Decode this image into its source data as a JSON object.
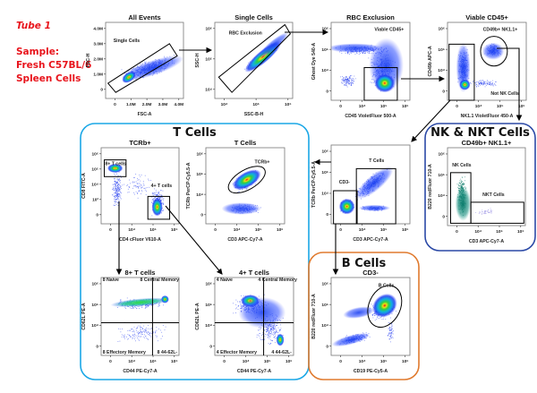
{
  "sample": {
    "tube": "Tube 1",
    "lines": [
      "Sample:",
      "Fresh C57BL/6",
      "Spleen Cells"
    ]
  },
  "colors": {
    "tcell_box": "#1aa7e6",
    "nk_box": "#2b49a6",
    "bcell_box": "#e07a2e",
    "sample_text": "#e8141c"
  },
  "groups": {
    "tcells": "T Cells",
    "nk": "NK & NKT Cells",
    "bcells": "B Cells"
  },
  "plots": {
    "all_events": {
      "title": "All Events",
      "xlabel": "FSC-A",
      "ylabel": "FSC-H",
      "xticks": [
        "0",
        "1.0M",
        "2.0M",
        "3.0M",
        "4.0M"
      ],
      "yticks": [
        "0",
        "1.0M",
        "2.0M",
        "3.0M",
        "4.0M"
      ],
      "gates": [
        "Single Cells"
      ]
    },
    "single_cells": {
      "title": "Single Cells",
      "xlabel": "SSC-B-H",
      "ylabel": "SSC-H",
      "xticks": [
        "10⁴",
        "10⁵",
        "10⁶"
      ],
      "yticks": [
        "10⁴",
        "10⁵",
        "10⁶"
      ],
      "gates": [
        "RBC Exclusion"
      ]
    },
    "rbc_exclusion": {
      "title": "RBC Exclusion",
      "xlabel": "CD45 VioletFluor 500-A",
      "ylabel": "Ghost Dye 540-A",
      "xticks": [
        "0",
        "10⁴",
        "10⁵",
        "10⁶"
      ],
      "yticks": [
        "0",
        "10⁴",
        "10⁵",
        "10⁶"
      ],
      "gates": [
        "Viable CD45+"
      ]
    },
    "viable_cd45": {
      "title": "Viable CD45+",
      "xlabel": "NK1.1 VioletFluor 450-A",
      "ylabel": "CD49b APC-A",
      "xticks": [
        "0",
        "10⁴",
        "10⁵",
        "10⁶"
      ],
      "yticks": [
        "0",
        "10⁴",
        "10⁵",
        "10⁶"
      ],
      "gates": [
        "CD49b+ NK1.1+",
        "Not NK Cells"
      ]
    },
    "tcrb": {
      "title": "TCRb+",
      "xlabel": "CD4 cFluor V610-A",
      "ylabel": "CD8 FITC-A",
      "xticks": [
        "0",
        "10⁴",
        "10⁵",
        "10⁶"
      ],
      "yticks": [
        "0",
        "10³",
        "10⁴",
        "10⁵",
        "10⁶"
      ],
      "gates": [
        "8+ T cells",
        "4+ T cells"
      ]
    },
    "tcells": {
      "title": "T Cells",
      "xlabel": "CD3 APC-Cy7-A",
      "ylabel": "TCRb PerCP-Cy5.5-A",
      "xticks": [
        "0",
        "10⁴",
        "10⁵",
        "10⁶"
      ],
      "yticks": [
        "0",
        "10⁴",
        "10⁵",
        "10⁶"
      ],
      "gates": [
        "TCRb+"
      ]
    },
    "cd3": {
      "title": "",
      "xlabel": "CD3 APC-Cy7-A",
      "ylabel": "TCRb PerCP-Cy5.5-A",
      "xticks": [
        "0",
        "10⁴",
        "10⁵",
        "10⁶"
      ],
      "yticks": [
        "0",
        "10⁴",
        "10⁵",
        "10⁶"
      ],
      "gates": [
        "CD3-",
        "T Cells"
      ]
    },
    "nk": {
      "title": "CD49b+ NK1.1+",
      "xlabel": "CD3 APC-Cy7-A",
      "ylabel": "B220 redFluor 710-A",
      "xticks": [
        "0",
        "10⁴",
        "10⁵",
        "10⁶"
      ],
      "yticks": [
        "0",
        "10⁴",
        "10⁵",
        "10⁶"
      ],
      "gates": [
        "NK Cells",
        "NKT Cells"
      ]
    },
    "cd8": {
      "title": "8+ T cells",
      "xlabel": "CD44 PE-Cy7-A",
      "ylabel": "CD62L PE-A",
      "xticks": [
        "0",
        "10⁴",
        "10⁵",
        "10⁶"
      ],
      "yticks": [
        "0",
        "10⁴",
        "10⁵",
        "10⁶"
      ],
      "gates": [
        "8 Naive",
        "8 Central Memory",
        "8 Effectory Memory",
        "8 44-62L-"
      ]
    },
    "cd4": {
      "title": "4+ T cells",
      "xlabel": "CD44 PE-Cy7-A",
      "ylabel": "CD62L PE-A",
      "xticks": [
        "0",
        "10⁴",
        "10⁵",
        "10⁶"
      ],
      "yticks": [
        "0",
        "10⁴",
        "10⁵",
        "10⁶"
      ],
      "gates": [
        "4 Naive",
        "4 Central Memory",
        "4 Effector Memory",
        "4 44-62L-"
      ]
    },
    "bcells": {
      "title": "CD3-",
      "xlabel": "CD19 PE-Cy5-A",
      "ylabel": "B220 redFluor 710-A",
      "xticks": [
        "0",
        "10⁴",
        "10⁵",
        "10⁶"
      ],
      "yticks": [
        "0",
        "10⁴",
        "10⁵",
        "10⁶"
      ],
      "gates": [
        "B Cells"
      ]
    }
  }
}
